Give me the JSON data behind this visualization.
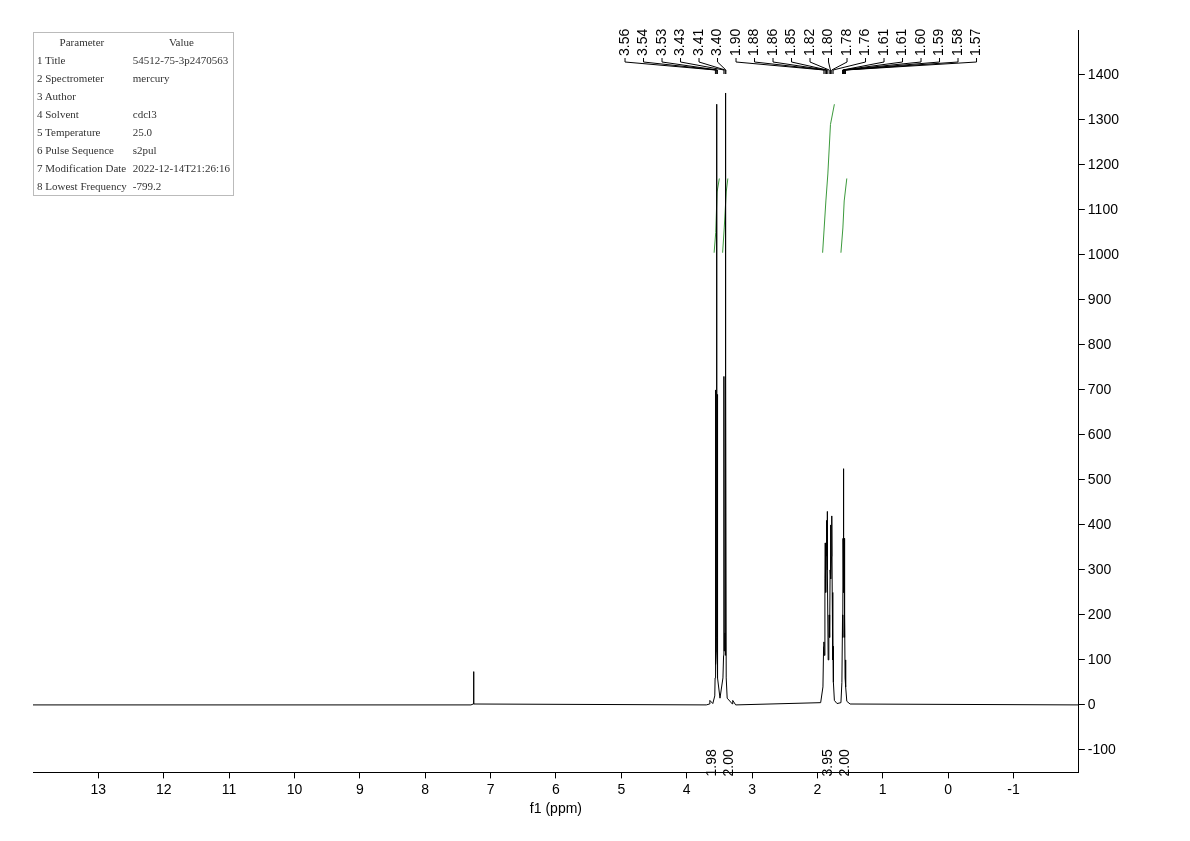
{
  "chart_data": {
    "type": "line",
    "xlabel": "f1 (ppm)",
    "xlim": [
      14,
      -2
    ],
    "xticks": [
      13,
      12,
      11,
      10,
      9,
      8,
      7,
      6,
      5,
      4,
      3,
      2,
      1,
      0,
      -1
    ],
    "ylim": [
      -150,
      1500
    ],
    "yticks": [
      -100,
      0,
      100,
      200,
      300,
      400,
      500,
      600,
      700,
      800,
      900,
      1000,
      1100,
      1200,
      1300,
      1400
    ],
    "marker": "none",
    "series": [
      {
        "color": "#000000",
        "x": [
          14,
          7.3,
          7.265,
          7.26,
          7.255,
          3.7,
          3.65,
          3.645,
          3.6,
          3.57,
          3.565,
          3.56,
          3.555,
          3.547,
          3.543,
          3.54,
          3.537,
          3.533,
          3.53,
          3.525,
          3.49,
          3.445,
          3.435,
          3.43,
          3.425,
          3.417,
          3.413,
          3.41,
          3.403,
          3.4,
          3.395,
          3.38,
          3.3,
          3.295,
          3.25,
          1.95,
          1.915,
          1.905,
          1.9,
          1.893,
          1.885,
          1.88,
          1.873,
          1.865,
          1.86,
          1.852,
          1.85,
          1.845,
          1.835,
          1.825,
          1.82,
          1.813,
          1.805,
          1.8,
          1.793,
          1.785,
          1.78,
          1.773,
          1.765,
          1.76,
          1.755,
          1.74,
          1.7,
          1.64,
          1.625,
          1.615,
          1.612,
          1.608,
          1.605,
          1.6,
          1.593,
          1.59,
          1.586,
          1.582,
          1.576,
          1.57,
          1.565,
          1.55,
          1.5,
          -2
        ],
        "values": [
          0,
          0,
          2,
          74,
          2,
          0,
          2,
          10,
          3,
          20,
          60,
          700,
          90,
          120,
          150,
          1335,
          150,
          110,
          690,
          60,
          15,
          60,
          110,
          730,
          120,
          140,
          160,
          1360,
          110,
          720,
          60,
          15,
          2,
          10,
          0,
          5,
          40,
          130,
          140,
          110,
          280,
          360,
          250,
          330,
          410,
          380,
          430,
          300,
          100,
          150,
          200,
          150,
          300,
          400,
          280,
          330,
          420,
          250,
          100,
          130,
          50,
          10,
          3,
          5,
          50,
          200,
          150,
          370,
          250,
          525,
          250,
          370,
          150,
          200,
          60,
          100,
          40,
          8,
          2,
          0
        ]
      },
      {
        "color": "#3c9a3c",
        "x": [
          3.58,
          3.555,
          3.535,
          3.5
        ],
        "values": [
          1005,
          1050,
          1140,
          1170
        ]
      },
      {
        "color": "#3c9a3c",
        "x": [
          3.45,
          3.425,
          3.395,
          3.37
        ],
        "values": [
          1005,
          1060,
          1140,
          1170
        ]
      },
      {
        "color": "#3c9a3c",
        "x": [
          1.92,
          1.87,
          1.84,
          1.8,
          1.74
        ],
        "values": [
          1005,
          1120,
          1180,
          1290,
          1335
        ]
      },
      {
        "color": "#3c9a3c",
        "x": [
          1.64,
          1.61,
          1.59,
          1.55
        ],
        "values": [
          1005,
          1060,
          1120,
          1170
        ]
      }
    ],
    "annotations": [
      "Parameter\tValue",
      "1 Title\t54512-75-3p2470563",
      "2 Spectrometer\tmercury",
      "3 Author\t",
      "4 Solvent\tcdcl3",
      "5 Temperature\t25.0",
      "6 Pulse Sequence\ts2pul",
      "7 Modification Date\t2022-12-14T21:26:16",
      "8 Lowest Frequency\t-799.2",
      "3.56",
      "3.54",
      "3.53",
      "3.43",
      "3.41",
      "3.40",
      "1.90",
      "1.88",
      "1.86",
      "1.85",
      "1.82",
      "1.80",
      "1.78",
      "1.76",
      "1.61",
      "1.61",
      "1.60",
      "1.59",
      "1.58",
      "1.57",
      "1.98",
      "2.00",
      "3.95",
      "2.00"
    ]
  }
}
